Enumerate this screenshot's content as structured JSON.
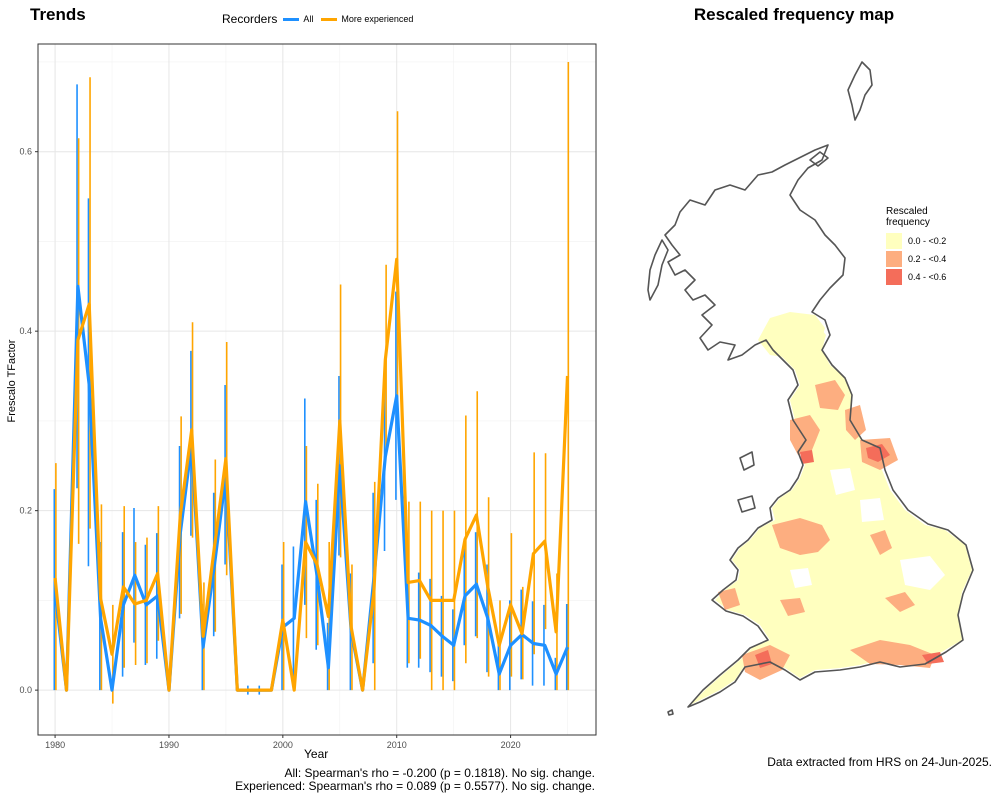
{
  "trends_title": "Trends",
  "map_title": "Rescaled frequency map",
  "legend": {
    "title": "Recorders",
    "items": [
      {
        "label": "All",
        "color": "#1E90FF"
      },
      {
        "label": "More experienced",
        "color": "#FFA500"
      }
    ]
  },
  "stats": {
    "line1": "All: Spearman's rho = -0.200 (p = 0.1818). No sig. change.",
    "line2": "Experienced: Spearman's rho = 0.089 (p = 0.5577). No sig. change."
  },
  "map_legend": {
    "title_line1": "Rescaled",
    "title_line2": "frequency",
    "items": [
      {
        "label": "0.0 - <0.2",
        "color": "#FFFFBF"
      },
      {
        "label": "0.2 - <0.4",
        "color": "#FDAE80"
      },
      {
        "label": "0.4 - <0.6",
        "color": "#F46D5A"
      }
    ]
  },
  "footnote": "Data extracted from HRS on 24-Jun-2025.",
  "chart_data": {
    "type": "line",
    "xlabel": "Year",
    "ylabel": "Frescalo TFactor",
    "xlim": [
      1978.5,
      2027.5
    ],
    "ylim": [
      -0.05,
      0.72
    ],
    "x_ticks": [
      1980,
      1990,
      2000,
      2010,
      2020
    ],
    "y_ticks": [
      0.0,
      0.2,
      0.4,
      0.6
    ],
    "y_tick_labels": [
      "0.0",
      "0.2",
      "0.4",
      "0.6"
    ],
    "grid": true,
    "legend_position": "top",
    "series": [
      {
        "name": "All",
        "color": "#1E90FF",
        "points": [
          {
            "x": 1980,
            "y": 0.11,
            "lo": 0.0,
            "hi": 0.224
          },
          {
            "x": 1981,
            "y": 0.0,
            "lo": 0.0,
            "hi": 0.0
          },
          {
            "x": 1982,
            "y": 0.45,
            "lo": 0.225,
            "hi": 0.675
          },
          {
            "x": 1983,
            "y": 0.34,
            "lo": 0.138,
            "hi": 0.548
          },
          {
            "x": 1984,
            "y": 0.08,
            "lo": 0.0,
            "hi": 0.165
          },
          {
            "x": 1985,
            "y": 0.0,
            "lo": 0.0,
            "hi": 0.0
          },
          {
            "x": 1986,
            "y": 0.095,
            "lo": 0.015,
            "hi": 0.176
          },
          {
            "x": 1987,
            "y": 0.128,
            "lo": 0.053,
            "hi": 0.203
          },
          {
            "x": 1988,
            "y": 0.095,
            "lo": 0.028,
            "hi": 0.162
          },
          {
            "x": 1989,
            "y": 0.105,
            "lo": 0.035,
            "hi": 0.175
          },
          {
            "x": 1990,
            "y": 0.0,
            "lo": 0.0,
            "hi": 0.0
          },
          {
            "x": 1991,
            "y": 0.175,
            "lo": 0.08,
            "hi": 0.272
          },
          {
            "x": 1992,
            "y": 0.275,
            "lo": 0.172,
            "hi": 0.378
          },
          {
            "x": 1993,
            "y": 0.048,
            "lo": 0.0,
            "hi": 0.096
          },
          {
            "x": 1994,
            "y": 0.14,
            "lo": 0.06,
            "hi": 0.22
          },
          {
            "x": 1995,
            "y": 0.24,
            "lo": 0.14,
            "hi": 0.34
          },
          {
            "x": 1996,
            "y": 0.0,
            "lo": 0.0,
            "hi": 0.0
          },
          {
            "x": 1997,
            "y": 0.0,
            "lo": -0.005,
            "hi": 0.005
          },
          {
            "x": 1998,
            "y": 0.0,
            "lo": -0.005,
            "hi": 0.005
          },
          {
            "x": 1999,
            "y": 0.0,
            "lo": 0.0,
            "hi": 0.0
          },
          {
            "x": 2000,
            "y": 0.07,
            "lo": 0.0,
            "hi": 0.14
          },
          {
            "x": 2001,
            "y": 0.08,
            "lo": 0.0,
            "hi": 0.16
          },
          {
            "x": 2002,
            "y": 0.21,
            "lo": 0.095,
            "hi": 0.325
          },
          {
            "x": 2003,
            "y": 0.128,
            "lo": 0.045,
            "hi": 0.212
          },
          {
            "x": 2004,
            "y": 0.025,
            "lo": 0.0,
            "hi": 0.075
          },
          {
            "x": 2005,
            "y": 0.25,
            "lo": 0.15,
            "hi": 0.35
          },
          {
            "x": 2006,
            "y": 0.065,
            "lo": 0.0,
            "hi": 0.13
          },
          {
            "x": 2007,
            "y": 0.0,
            "lo": 0.0,
            "hi": 0.0
          },
          {
            "x": 2008,
            "y": 0.125,
            "lo": 0.03,
            "hi": 0.22
          },
          {
            "x": 2009,
            "y": 0.26,
            "lo": 0.155,
            "hi": 0.363
          },
          {
            "x": 2010,
            "y": 0.328,
            "lo": 0.212,
            "hi": 0.444
          },
          {
            "x": 2011,
            "y": 0.08,
            "lo": 0.025,
            "hi": 0.135
          },
          {
            "x": 2012,
            "y": 0.078,
            "lo": 0.025,
            "hi": 0.131
          },
          {
            "x": 2013,
            "y": 0.072,
            "lo": 0.02,
            "hi": 0.124
          },
          {
            "x": 2014,
            "y": 0.06,
            "lo": 0.015,
            "hi": 0.105
          },
          {
            "x": 2015,
            "y": 0.05,
            "lo": 0.01,
            "hi": 0.09
          },
          {
            "x": 2016,
            "y": 0.105,
            "lo": 0.05,
            "hi": 0.16
          },
          {
            "x": 2017,
            "y": 0.118,
            "lo": 0.06,
            "hi": 0.176
          },
          {
            "x": 2018,
            "y": 0.08,
            "lo": 0.02,
            "hi": 0.14
          },
          {
            "x": 2019,
            "y": 0.018,
            "lo": 0.0,
            "hi": 0.05
          },
          {
            "x": 2020,
            "y": 0.05,
            "lo": 0.0,
            "hi": 0.1
          },
          {
            "x": 2021,
            "y": 0.062,
            "lo": 0.012,
            "hi": 0.112
          },
          {
            "x": 2022,
            "y": 0.052,
            "lo": 0.005,
            "hi": 0.099
          },
          {
            "x": 2023,
            "y": 0.05,
            "lo": 0.005,
            "hi": 0.095
          },
          {
            "x": 2024,
            "y": 0.018,
            "lo": 0.0,
            "hi": 0.036
          },
          {
            "x": 2025,
            "y": 0.048,
            "lo": 0.0,
            "hi": 0.096
          }
        ]
      },
      {
        "name": "More experienced",
        "color": "#FFA500",
        "points": [
          {
            "x": 1980,
            "y": 0.125,
            "lo": 0.0,
            "hi": 0.253
          },
          {
            "x": 1981,
            "y": 0.0,
            "lo": 0.0,
            "hi": 0.0
          },
          {
            "x": 1982,
            "y": 0.39,
            "lo": 0.163,
            "hi": 0.615
          },
          {
            "x": 1983,
            "y": 0.43,
            "lo": 0.18,
            "hi": 0.683
          },
          {
            "x": 1984,
            "y": 0.102,
            "lo": 0.0,
            "hi": 0.207
          },
          {
            "x": 1985,
            "y": 0.04,
            "lo": -0.015,
            "hi": 0.095
          },
          {
            "x": 1986,
            "y": 0.115,
            "lo": 0.025,
            "hi": 0.205
          },
          {
            "x": 1987,
            "y": 0.096,
            "lo": 0.028,
            "hi": 0.165
          },
          {
            "x": 1988,
            "y": 0.1,
            "lo": 0.03,
            "hi": 0.17
          },
          {
            "x": 1989,
            "y": 0.13,
            "lo": 0.055,
            "hi": 0.205
          },
          {
            "x": 1990,
            "y": 0.0,
            "lo": 0.0,
            "hi": 0.0
          },
          {
            "x": 1991,
            "y": 0.195,
            "lo": 0.085,
            "hi": 0.305
          },
          {
            "x": 1992,
            "y": 0.29,
            "lo": 0.17,
            "hi": 0.41
          },
          {
            "x": 1993,
            "y": 0.06,
            "lo": 0.0,
            "hi": 0.12
          },
          {
            "x": 1994,
            "y": 0.16,
            "lo": 0.065,
            "hi": 0.257
          },
          {
            "x": 1995,
            "y": 0.258,
            "lo": 0.128,
            "hi": 0.388
          },
          {
            "x": 1996,
            "y": 0.0,
            "lo": 0.0,
            "hi": 0.0
          },
          {
            "x": 1997,
            "y": 0.0,
            "lo": 0.0,
            "hi": 0.0
          },
          {
            "x": 1998,
            "y": 0.0,
            "lo": 0.0,
            "hi": 0.0
          },
          {
            "x": 1999,
            "y": 0.0,
            "lo": 0.0,
            "hi": 0.0
          },
          {
            "x": 2000,
            "y": 0.078,
            "lo": 0.0,
            "hi": 0.165
          },
          {
            "x": 2001,
            "y": 0.0,
            "lo": 0.0,
            "hi": 0.0
          },
          {
            "x": 2002,
            "y": 0.165,
            "lo": 0.058,
            "hi": 0.272
          },
          {
            "x": 2003,
            "y": 0.14,
            "lo": 0.05,
            "hi": 0.23
          },
          {
            "x": 2004,
            "y": 0.082,
            "lo": 0.0,
            "hi": 0.165
          },
          {
            "x": 2005,
            "y": 0.3,
            "lo": 0.148,
            "hi": 0.452
          },
          {
            "x": 2006,
            "y": 0.07,
            "lo": 0.0,
            "hi": 0.14
          },
          {
            "x": 2007,
            "y": 0.0,
            "lo": 0.0,
            "hi": 0.0
          },
          {
            "x": 2008,
            "y": 0.11,
            "lo": 0.0,
            "hi": 0.232
          },
          {
            "x": 2009,
            "y": 0.368,
            "lo": 0.262,
            "hi": 0.474
          },
          {
            "x": 2010,
            "y": 0.48,
            "lo": 0.315,
            "hi": 0.645
          },
          {
            "x": 2011,
            "y": 0.12,
            "lo": 0.03,
            "hi": 0.21
          },
          {
            "x": 2012,
            "y": 0.122,
            "lo": 0.035,
            "hi": 0.21
          },
          {
            "x": 2013,
            "y": 0.1,
            "lo": 0.0,
            "hi": 0.2
          },
          {
            "x": 2014,
            "y": 0.1,
            "lo": 0.0,
            "hi": 0.2
          },
          {
            "x": 2015,
            "y": 0.1,
            "lo": 0.0,
            "hi": 0.2
          },
          {
            "x": 2016,
            "y": 0.168,
            "lo": 0.03,
            "hi": 0.306
          },
          {
            "x": 2017,
            "y": 0.195,
            "lo": 0.058,
            "hi": 0.333
          },
          {
            "x": 2018,
            "y": 0.115,
            "lo": 0.015,
            "hi": 0.215
          },
          {
            "x": 2019,
            "y": 0.05,
            "lo": 0.0,
            "hi": 0.1
          },
          {
            "x": 2020,
            "y": 0.095,
            "lo": 0.015,
            "hi": 0.175
          },
          {
            "x": 2021,
            "y": 0.063,
            "lo": 0.012,
            "hi": 0.115
          },
          {
            "x": 2022,
            "y": 0.152,
            "lo": 0.04,
            "hi": 0.265
          },
          {
            "x": 2023,
            "y": 0.166,
            "lo": 0.068,
            "hi": 0.264
          },
          {
            "x": 2024,
            "y": 0.065,
            "lo": 0.0,
            "hi": 0.13
          },
          {
            "x": 2025,
            "y": 0.35,
            "lo": 0.0,
            "hi": 0.7
          }
        ]
      }
    ]
  }
}
